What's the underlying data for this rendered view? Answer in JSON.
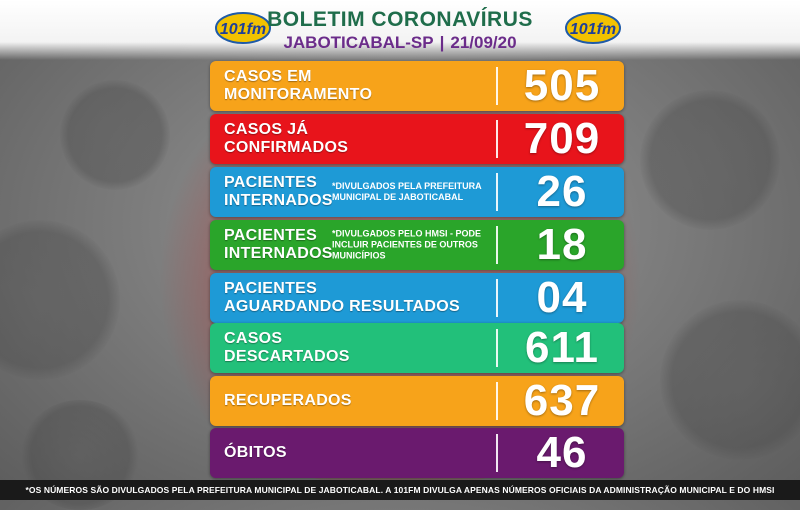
{
  "header": {
    "title": "BOLETIM CORONAVÍRUS",
    "city": "JABOTICABAL-SP",
    "separator": "|",
    "date": "21/09/20",
    "logo_text": "101fm"
  },
  "panels": [
    {
      "label_line1": "CASOS EM",
      "label_line2": "MONITORAMENTO",
      "note": "",
      "value": "505",
      "color": "#f7a31a"
    },
    {
      "label_line1": "CASOS JÁ",
      "label_line2": "CONFIRMADOS",
      "note": "",
      "value": "709",
      "color": "#e8141b"
    },
    {
      "label_line1": "PACIENTES",
      "label_line2": "INTERNADOS",
      "note": "*DIVULGADOS PELA PREFEITURA MUNICIPAL DE JABOTICABAL",
      "value": "26",
      "color": "#1e9ad6"
    },
    {
      "label_line1": "PACIENTES",
      "label_line2": "INTERNADOS",
      "note": "*DIVULGADOS PELO HMSI - PODE INCLUIR PACIENTES DE OUTROS MUNICÍPIOS",
      "value": "18",
      "color": "#2aa52a"
    },
    {
      "label_line1": "PACIENTES",
      "label_line2": "AGUARDANDO RESULTADOS",
      "note": "",
      "value": "04",
      "color": "#1e9ad6"
    },
    {
      "label_line1": "CASOS",
      "label_line2": "DESCARTADOS",
      "note": "",
      "value": "611",
      "color": "#22c07a"
    },
    {
      "label_line1": "RECUPERADOS",
      "label_line2": "",
      "note": "",
      "value": "637",
      "color": "#f7a31a"
    },
    {
      "label_line1": "ÓBITOS",
      "label_line2": "",
      "note": "",
      "value": "46",
      "color": "#6a1a6e"
    }
  ],
  "footer": {
    "text": "*OS NÚMEROS SÃO DIVULGADOS PELA PREFEITURA MUNICIPAL DE JABOTICABAL. A 101FM DIVULGA APENAS NÚMEROS OFICIAIS DA ADMINISTRAÇÃO MUNICIPAL E DO HMSI"
  }
}
